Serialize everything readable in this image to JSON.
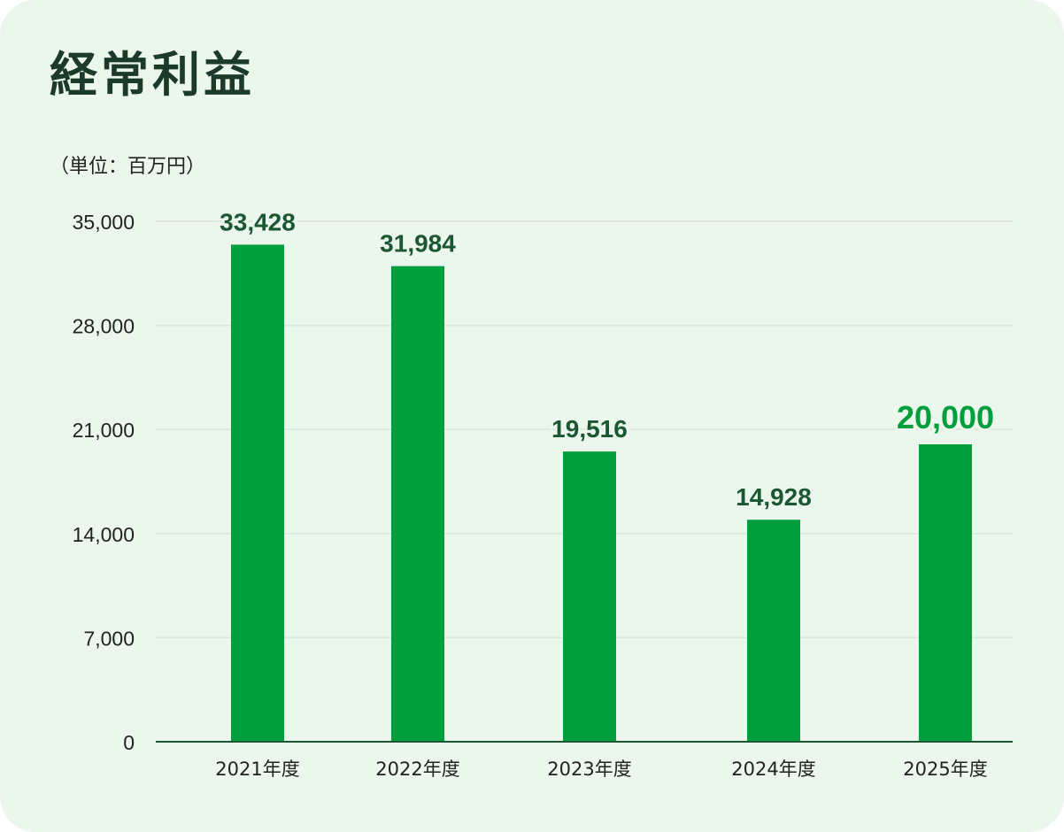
{
  "title": "経常利益",
  "unit_label": "（単位：百万円）",
  "colors": {
    "background": "#ebf6ec",
    "bar": "#009e3c",
    "value_label": "#1c5734",
    "value_label_highlight": "#009e3c",
    "axis": "#1c5734",
    "grid": "#d9e4da"
  },
  "chart_data": {
    "type": "bar",
    "categories": [
      "2021年度",
      "2022年度",
      "2023年度",
      "2024年度",
      "2025年度"
    ],
    "values": [
      33428,
      31984,
      19516,
      14928,
      20000
    ],
    "value_labels": [
      "33,428",
      "31,984",
      "19,516",
      "14,928",
      "20,000"
    ],
    "highlight_index": 4,
    "ylim": [
      0,
      35000
    ],
    "yticks": [
      0,
      7000,
      14000,
      21000,
      28000,
      35000
    ],
    "ytick_labels": [
      "0",
      "7,000",
      "14,000",
      "21,000",
      "28,000",
      "35,000"
    ],
    "grid": true,
    "title": "経常利益",
    "xlabel": "",
    "ylabel": ""
  }
}
